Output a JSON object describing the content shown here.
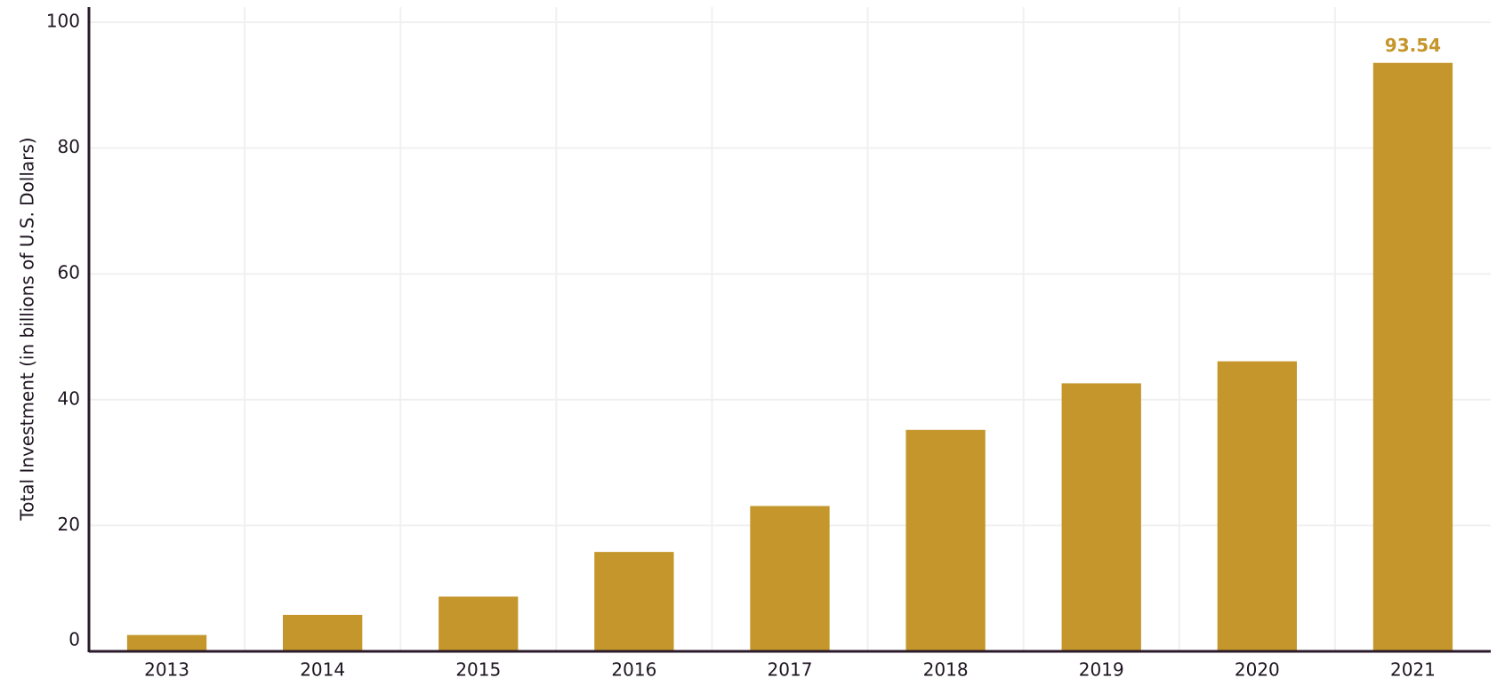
{
  "chart_data": {
    "type": "bar",
    "y_label": "Total Investment (in billions of U.S. Dollars)",
    "categories": [
      "2013",
      "2014",
      "2015",
      "2016",
      "2017",
      "2018",
      "2019",
      "2020",
      "2021"
    ],
    "values": [
      2.6,
      5.8,
      8.7,
      15.8,
      23.1,
      35.2,
      42.6,
      46.1,
      93.54
    ],
    "value_labels": [
      null,
      null,
      null,
      null,
      null,
      null,
      null,
      null,
      "93.54"
    ],
    "color": "#c4962c",
    "ylim": [
      0,
      100
    ],
    "yticks": [
      0,
      20,
      40,
      60,
      80,
      100
    ],
    "grid": true
  }
}
